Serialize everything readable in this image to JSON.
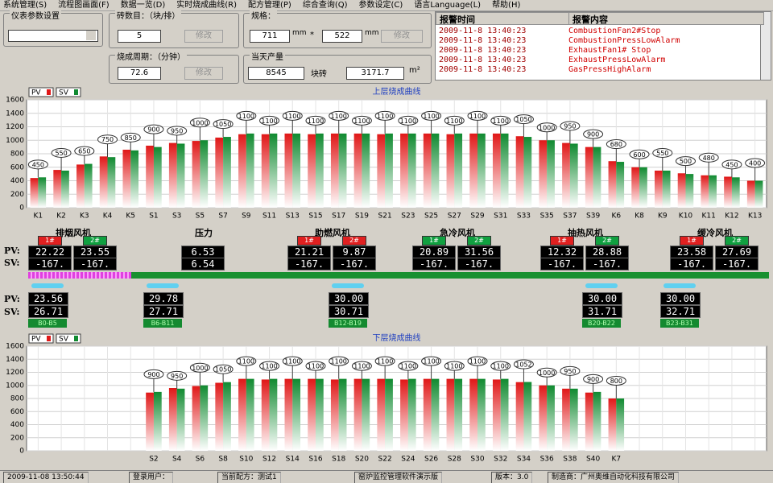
{
  "menu": [
    "系统管理(S)",
    "流程图画面(F)",
    "数据一览(D)",
    "实时烧成曲线(R)",
    "配方管理(P)",
    "综合查询(Q)",
    "参数设定(C)",
    "语言Language(L)",
    "帮助(H)"
  ],
  "panel": {
    "instrument_label": "仪表参数设置",
    "bricks": {
      "label": "砖数目：（块/排）",
      "value": "5",
      "button": "修改"
    },
    "spec": {
      "label": "规格：",
      "width": "711",
      "width_unit": "mm",
      "times": "*",
      "length": "522",
      "length_unit": "mm",
      "button": "修改"
    },
    "cycle": {
      "label": "烧成周期：（分钟）",
      "value": "72.6",
      "button": "修改"
    },
    "output": {
      "label": "当天产量",
      "bricks": "8545",
      "bricks_unit": "块砖",
      "area": "3171.7",
      "area_unit": "m²"
    }
  },
  "alarms": {
    "headers": [
      "报警时间",
      "报警内容"
    ],
    "rows": [
      [
        "2009-11-8 13:40:23",
        "CombustionFan2#Stop"
      ],
      [
        "2009-11-8 13:40:23",
        "CombustionPressLowAlarm"
      ],
      [
        "2009-11-8 13:40:23",
        "ExhaustFan1# Stop"
      ],
      [
        "2009-11-8 13:40:23",
        "ExhaustPressLowAlarm"
      ],
      [
        "2009-11-8 13:40:23",
        "GasPressHighAlarm"
      ]
    ]
  },
  "chart_data": [
    {
      "type": "bar",
      "title": "上层烧成曲线",
      "categories": [
        "K1",
        "K2",
        "K3",
        "K4",
        "K5",
        "S1",
        "S3",
        "S5",
        "S7",
        "S9",
        "S11",
        "S13",
        "S15",
        "S17",
        "S19",
        "S21",
        "S23",
        "S25",
        "S27",
        "S29",
        "S31",
        "S33",
        "S35",
        "S37",
        "S39",
        "K6",
        "K8",
        "K9",
        "K10",
        "K11",
        "K12",
        "K13"
      ],
      "series": [
        {
          "name": "PV",
          "color": "#e01818",
          "values": [
            440,
            560,
            640,
            760,
            860,
            920,
            960,
            990,
            1040,
            1090,
            1090,
            1100,
            1090,
            1100,
            1100,
            1090,
            1100,
            1100,
            1090,
            1100,
            1100,
            1060,
            1000,
            960,
            900,
            690,
            600,
            550,
            510,
            480,
            460,
            400
          ]
        },
        {
          "name": "SV",
          "color": "#108a30",
          "values": [
            450,
            550,
            650,
            750,
            850,
            900,
            950,
            1000,
            1050,
            1100,
            1100,
            1100,
            1100,
            1100,
            1100,
            1100,
            1100,
            1100,
            1100,
            1100,
            1100,
            1050,
            1000,
            950,
            900,
            680,
            600,
            550,
            500,
            480,
            450,
            400
          ]
        }
      ],
      "ylim": [
        0,
        1600
      ],
      "yticks": [
        0,
        200,
        400,
        600,
        800,
        1000,
        1200,
        1400,
        1600
      ],
      "grid": true
    },
    {
      "type": "bar",
      "title": "下层烧成曲线",
      "categories": [
        null,
        null,
        null,
        null,
        null,
        "S2",
        "S4",
        "S6",
        "S8",
        "S10",
        "S12",
        "S14",
        "S16",
        "S18",
        "S20",
        "S22",
        "S24",
        "S26",
        "S28",
        "S30",
        "S32",
        "S34",
        "S36",
        "S38",
        "S40",
        "K7",
        null,
        null,
        null,
        null,
        null,
        null
      ],
      "series": [
        {
          "name": "PV",
          "color": "#e01818",
          "values": [
            null,
            null,
            null,
            null,
            null,
            890,
            960,
            990,
            1040,
            1100,
            1090,
            1100,
            1100,
            1090,
            1100,
            1100,
            1090,
            1100,
            1100,
            1100,
            1090,
            1050,
            1000,
            950,
            890,
            800,
            null,
            null,
            null,
            null,
            null,
            null
          ]
        },
        {
          "name": "SV",
          "color": "#108a30",
          "values": [
            null,
            null,
            null,
            null,
            null,
            900,
            950,
            1000,
            1050,
            1100,
            1100,
            1100,
            1100,
            1100,
            1100,
            1100,
            1100,
            1100,
            1100,
            1100,
            1100,
            1052,
            1000,
            950,
            900,
            800,
            null,
            null,
            null,
            null,
            null,
            null
          ]
        }
      ],
      "ylim": [
        0,
        1600
      ],
      "yticks": [
        0,
        200,
        400,
        600,
        800,
        1000,
        1200,
        1400,
        1600
      ],
      "grid": true
    }
  ],
  "fans": {
    "pv_label": "PV:",
    "sv_label": "SV:",
    "groups": [
      {
        "name": "排烟风机",
        "units": [
          {
            "label": "1#",
            "color": "#e02020",
            "pv": "22.22",
            "sv": "-167."
          },
          {
            "label": "2#",
            "color": "#10a040",
            "pv": "23.55",
            "sv": "-167."
          }
        ]
      },
      {
        "name": "压力",
        "units": [
          {
            "pv": "6.53",
            "sv": "6.54"
          }
        ]
      },
      {
        "name": "助燃风机",
        "units": [
          {
            "label": "1#",
            "color": "#e02020",
            "pv": "21.21",
            "sv": "-167."
          },
          {
            "label": "2#",
            "color": "#e02020",
            "pv": "9.87",
            "sv": "-167."
          }
        ]
      },
      {
        "name": "急冷风机",
        "units": [
          {
            "label": "1#",
            "color": "#10a040",
            "pv": "20.89",
            "sv": "-167."
          },
          {
            "label": "2#",
            "color": "#10a040",
            "pv": "31.56",
            "sv": "-167."
          }
        ]
      },
      {
        "name": "抽热风机",
        "units": [
          {
            "label": "1#",
            "color": "#e02020",
            "pv": "12.32",
            "sv": "-167."
          },
          {
            "label": "2#",
            "color": "#10a040",
            "pv": "28.88",
            "sv": "-167."
          }
        ]
      },
      {
        "name": "缓冷风机",
        "units": [
          {
            "label": "1#",
            "color": "#e02020",
            "pv": "23.58",
            "sv": "-167."
          },
          {
            "label": "2#",
            "color": "#10a040",
            "pv": "27.69",
            "sv": "-167."
          }
        ]
      }
    ]
  },
  "zones": {
    "pv_label": "PV:",
    "sv_label": "SV:",
    "items": [
      {
        "pv": "23.56",
        "sv": "26.71",
        "range": "B0-B5"
      },
      {
        "pv": "29.78",
        "sv": "27.71",
        "range": "B6-B11"
      },
      {
        "pv": "30.00",
        "sv": "30.71",
        "range": "B12-B19"
      },
      {
        "pv": "30.00",
        "sv": "31.71",
        "range": "B20-B22"
      },
      {
        "pv": "30.00",
        "sv": "32.71",
        "range": "B23-B31"
      }
    ]
  },
  "status": [
    "2009-11-08 13:50:44",
    "登录用户：",
    "当前配方：测试1",
    "窑炉监控管理软件演示版",
    "版本：3.0",
    "制造商：广州奥维自动化科技有限公司"
  ]
}
